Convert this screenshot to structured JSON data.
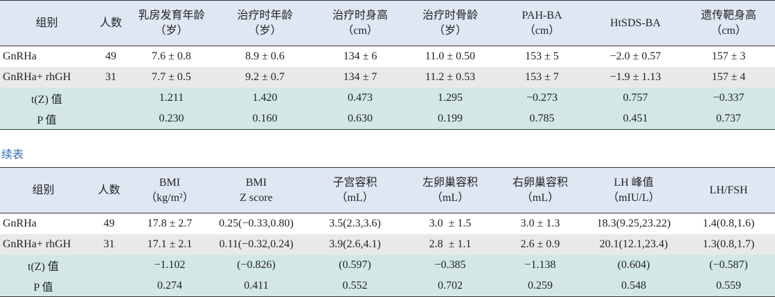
{
  "tables": [
    {
      "header": [
        [
          "组别"
        ],
        [
          "人数"
        ],
        [
          "乳房发育年龄",
          "（岁）"
        ],
        [
          "治疗时年龄",
          "（岁）"
        ],
        [
          "治疗时身高",
          "（cm）"
        ],
        [
          "治疗时骨龄",
          "（岁）"
        ],
        [
          "PAH-BA",
          "（cm）"
        ],
        [
          "HtSDS-BA"
        ],
        [
          "遗传靶身高",
          "（cm）"
        ]
      ],
      "rows": [
        [
          "GnRHa",
          "49",
          "7.6 ± 0.8",
          "8.9 ± 0.6",
          "134 ± 6",
          "11.0 ± 0.50",
          "153 ± 5",
          "−2.0 ± 0.57",
          "157 ± 3"
        ],
        [
          "GnRHa+ rhGH",
          "31",
          "7.7 ± 0.5",
          "9.2 ± 0.7",
          "134 ± 7",
          "11.2 ± 0.53",
          "153 ± 7",
          "−1.9 ± 1.13",
          "157 ± 4"
        ],
        [
          "t(Z) 值",
          "",
          "1.211",
          "1.420",
          "0.473",
          "1.295",
          "−0.273",
          "0.757",
          "−0.337"
        ],
        [
          "P 值",
          "",
          "0.230",
          "0.160",
          "0.630",
          "0.199",
          "0.785",
          "0.451",
          "0.737"
        ]
      ]
    },
    {
      "header": [
        [
          "组别"
        ],
        [
          "人数"
        ],
        [
          "BMI",
          "（kg/m²）"
        ],
        [
          "BMI",
          "Z score"
        ],
        [
          "子宫容积",
          "（mL）"
        ],
        [
          "左卵巢容积",
          "（mL）"
        ],
        [
          "右卵巢容积",
          "（mL）"
        ],
        [
          "LH 峰值",
          "（mIU/L）"
        ],
        [
          "LH/FSH"
        ]
      ],
      "rows": [
        [
          "GnRHa",
          "49",
          "17.8 ± 2.7",
          "0.25(−0.33,0.80)",
          "3.5(2.3,3.6)",
          "3.0  ± 1.5",
          "3.0 ± 1.3",
          "18.3(9.25,23.22)",
          "1.4(0.8,1.6)"
        ],
        [
          "GnRHa+ rhGH",
          "31",
          "17.1 ± 2.1",
          "0.11(−0.32,0.24)",
          "3.9(2.6,4.1)",
          "2.8  ± 1.1",
          "2.6 ± 0.9",
          "20.1(12.1,23.4)",
          "1.3(0.8,1.7)"
        ],
        [
          "t(Z) 值",
          "",
          "−1.102",
          "(−0.826)",
          "(0.597)",
          "−0.385",
          "−1.138",
          "(0.604)",
          "(−0.587)"
        ],
        [
          "P 值",
          "",
          "0.274",
          "0.411",
          "0.552",
          "0.702",
          "0.259",
          "0.548",
          "0.559"
        ]
      ]
    }
  ],
  "continued_label": "续表"
}
